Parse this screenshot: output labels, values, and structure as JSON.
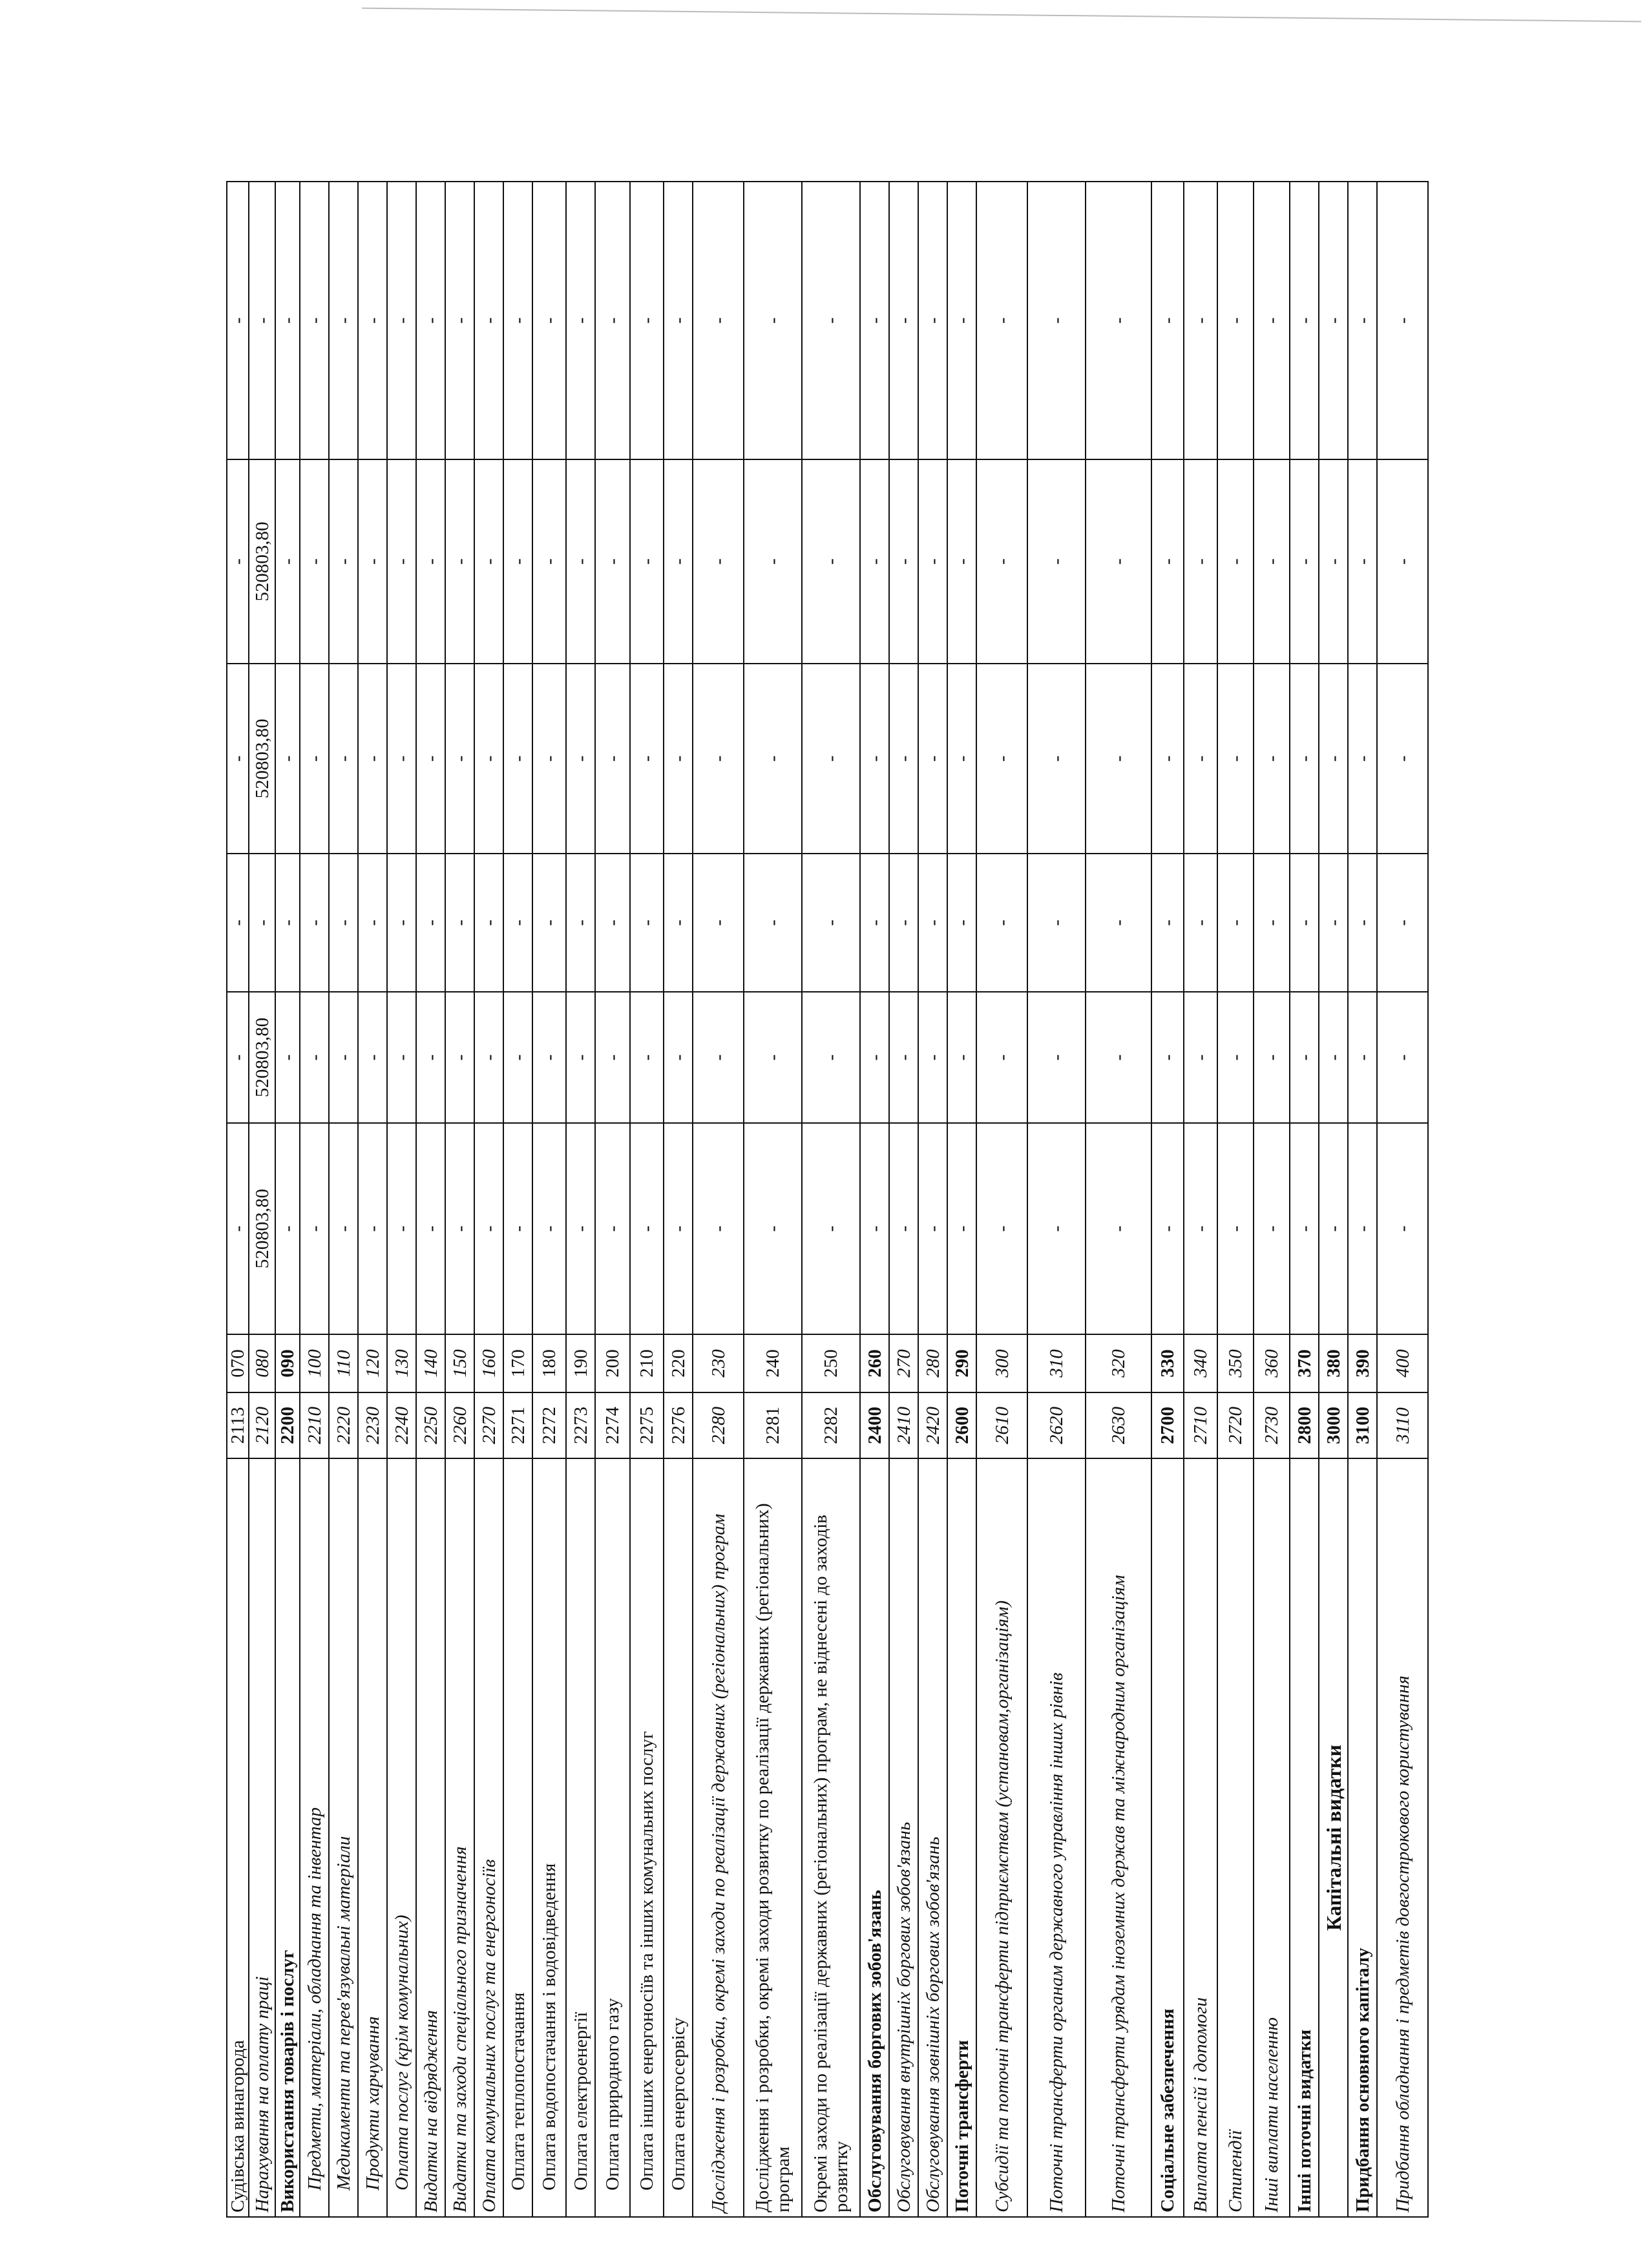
{
  "table": {
    "rows": [
      {
        "name": "Судівська винагорода",
        "code": "2113",
        "line": "070",
        "values": [
          "-",
          "-",
          "-",
          "-",
          "-",
          "-"
        ]
      },
      {
        "name": "Нарахування на оплату праці",
        "code": "2120",
        "line": "080",
        "values": [
          "520803,80",
          "520803,80",
          "-",
          "520803,80",
          "520803,80",
          "-"
        ]
      },
      {
        "name": "Використання товарів і послуг",
        "code": "2200",
        "line": "090",
        "values": [
          "-",
          "-",
          "-",
          "-",
          "-",
          "-"
        ]
      },
      {
        "name": "Предмети, матеріали, обладнання та інвентар",
        "code": "2210",
        "line": "100",
        "values": [
          "-",
          "-",
          "-",
          "-",
          "-",
          "-"
        ]
      },
      {
        "name": "Медикаменти та перев'язувальні матеріали",
        "code": "2220",
        "line": "110",
        "values": [
          "-",
          "-",
          "-",
          "-",
          "-",
          "-"
        ]
      },
      {
        "name": "Продукти харчування",
        "code": "2230",
        "line": "120",
        "values": [
          "-",
          "-",
          "-",
          "-",
          "-",
          "-"
        ]
      },
      {
        "name": "Оплата послуг (крім комунальних)",
        "code": "2240",
        "line": "130",
        "values": [
          "-",
          "-",
          "-",
          "-",
          "-",
          "-"
        ]
      },
      {
        "name": "Видатки на відрядження",
        "code": "2250",
        "line": "140",
        "values": [
          "-",
          "-",
          "-",
          "-",
          "-",
          "-"
        ]
      },
      {
        "name": "Видатки та заходи спеціального призначення",
        "code": "2260",
        "line": "150",
        "values": [
          "-",
          "-",
          "-",
          "-",
          "-",
          "-"
        ]
      },
      {
        "name": "Оплата комунальних послуг та енергоносіїв",
        "code": "2270",
        "line": "160",
        "values": [
          "-",
          "-",
          "-",
          "-",
          "-",
          "-"
        ]
      },
      {
        "name": "Оплата теплопостачання",
        "code": "2271",
        "line": "170",
        "values": [
          "-",
          "-",
          "-",
          "-",
          "-",
          "-"
        ]
      },
      {
        "name": "Оплата водопостачання і водовідведення",
        "code": "2272",
        "line": "180",
        "values": [
          "-",
          "-",
          "-",
          "-",
          "-",
          "-"
        ]
      },
      {
        "name": "Оплата електроенергії",
        "code": "2273",
        "line": "190",
        "values": [
          "-",
          "-",
          "-",
          "-",
          "-",
          "-"
        ]
      },
      {
        "name": "Оплата природного газу",
        "code": "2274",
        "line": "200",
        "values": [
          "-",
          "-",
          "-",
          "-",
          "-",
          "-"
        ]
      },
      {
        "name": "Оплата інших енергоносіїв та інших комунальних послуг",
        "code": "2275",
        "line": "210",
        "values": [
          "-",
          "-",
          "-",
          "-",
          "-",
          "-"
        ]
      },
      {
        "name": "Оплата енергосервісу",
        "code": "2276",
        "line": "220",
        "values": [
          "-",
          "-",
          "-",
          "-",
          "-",
          "-"
        ]
      },
      {
        "name": "Дослідження і розробки, окремі заходи по реалізації державних (регіональних) програм",
        "code": "2280",
        "line": "230",
        "values": [
          "-",
          "-",
          "-",
          "-",
          "-",
          "-"
        ]
      },
      {
        "name": "Дослідження і розробки, окремі заходи розвитку по реалізації державних (регіональних) програм",
        "code": "2281",
        "line": "240",
        "values": [
          "-",
          "-",
          "-",
          "-",
          "-",
          "-"
        ]
      },
      {
        "name": "Окремі заходи по реалізації державних (регіональних) програм, не віднесені до заходів розвитку",
        "code": "2282",
        "line": "250",
        "values": [
          "-",
          "-",
          "-",
          "-",
          "-",
          "-"
        ]
      },
      {
        "name": "Обслуговування боргових зобов'язань",
        "code": "2400",
        "line": "260",
        "values": [
          "-",
          "-",
          "-",
          "-",
          "-",
          "-"
        ]
      },
      {
        "name": "Обслуговування внутрішніх боргових зобов'язань",
        "code": "2410",
        "line": "270",
        "values": [
          "-",
          "-",
          "-",
          "-",
          "-",
          "-"
        ]
      },
      {
        "name": "Обслуговування зовнішніх боргових зобов'язань",
        "code": "2420",
        "line": "280",
        "values": [
          "-",
          "-",
          "-",
          "-",
          "-",
          "-"
        ]
      },
      {
        "name": "Поточні трансферти",
        "code": "2600",
        "line": "290",
        "values": [
          "-",
          "-",
          "-",
          "-",
          "-",
          "-"
        ]
      },
      {
        "name": "Субсидії та поточні трансферти підприємствам (установам,організаціям)",
        "code": "2610",
        "line": "300",
        "values": [
          "-",
          "-",
          "-",
          "-",
          "-",
          "-"
        ]
      },
      {
        "name": "Поточні трансферти органам державного управління інших рівнів",
        "code": "2620",
        "line": "310",
        "values": [
          "-",
          "-",
          "-",
          "-",
          "-",
          "-"
        ]
      },
      {
        "name": "Поточні трансферти урядам іноземних держав та міжнародним організаціям",
        "code": "2630",
        "line": "320",
        "values": [
          "-",
          "-",
          "-",
          "-",
          "-",
          "-"
        ]
      },
      {
        "name": "Соціальне забезпечення",
        "code": "2700",
        "line": "330",
        "values": [
          "-",
          "-",
          "-",
          "-",
          "-",
          "-"
        ]
      },
      {
        "name": "Виплата пенсій і допомоги",
        "code": "2710",
        "line": "340",
        "values": [
          "-",
          "-",
          "-",
          "-",
          "-",
          "-"
        ]
      },
      {
        "name": "Стипендії",
        "code": "2720",
        "line": "350",
        "values": [
          "-",
          "-",
          "-",
          "-",
          "-",
          "-"
        ]
      },
      {
        "name": "Інші виплати населенню",
        "code": "2730",
        "line": "360",
        "values": [
          "-",
          "-",
          "-",
          "-",
          "-",
          "-"
        ]
      },
      {
        "name": "Інші поточні видатки",
        "code": "2800",
        "line": "370",
        "values": [
          "-",
          "-",
          "-",
          "-",
          "-",
          "-"
        ]
      },
      {
        "name": "Капітальні видатки",
        "code": "3000",
        "line": "380",
        "values": [
          "-",
          "-",
          "-",
          "-",
          "-",
          "-"
        ]
      },
      {
        "name": "Придбання основного капіталу",
        "code": "3100",
        "line": "390",
        "values": [
          "-",
          "-",
          "-",
          "-",
          "-",
          "-"
        ]
      },
      {
        "name": "Придбання обладнання і предметів довгострокового користування",
        "code": "3110",
        "line": "400",
        "values": [
          "-",
          "-",
          "-",
          "-",
          "-",
          "-"
        ]
      }
    ]
  }
}
